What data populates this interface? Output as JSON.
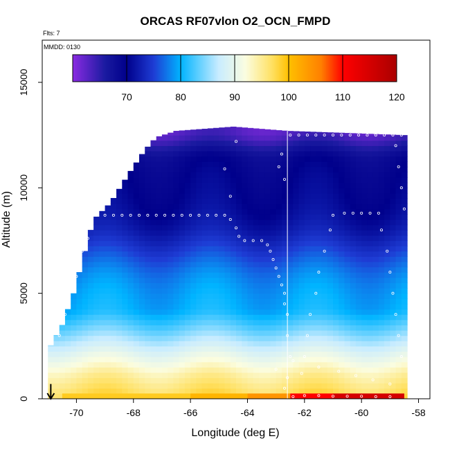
{
  "chart_data": {
    "type": "heatmap",
    "title": "ORCAS RF07vlon O2_OCN_FMPD",
    "note_flts": "Flts: 7",
    "note_mmdd": "MMDD: 0130",
    "xlabel": "Longitude (deg E)",
    "ylabel": "Altitude (m)",
    "xlim": [
      -71.2,
      -57.6
    ],
    "ylim": [
      0,
      17000
    ],
    "x_ticks": [
      -70,
      -68,
      -66,
      -64,
      -62,
      -60,
      -58
    ],
    "x_tick_labels": [
      "-70",
      "-68",
      "-66",
      "-64",
      "-62",
      "-60",
      "-58"
    ],
    "y_ticks": [
      0,
      5000,
      10000,
      15000
    ],
    "y_tick_labels": [
      "0",
      "5000",
      "10000",
      "15000"
    ],
    "colorbar": {
      "range": [
        60,
        120
      ],
      "ticks": [
        70,
        80,
        90,
        100,
        110,
        120
      ],
      "tick_labels": [
        "70",
        "80",
        "90",
        "100",
        "110",
        "120"
      ],
      "colors": [
        "#8a2be2",
        "#1a1aa0",
        "#00008b",
        "#1e3cd4",
        "#00b4ff",
        "#e6f6ff",
        "#fffff0",
        "#ffd21e",
        "#ffa000",
        "#ff0000",
        "#b40000"
      ]
    },
    "colorscale_stops": [
      {
        "value": 60,
        "color": "#8a2be2"
      },
      {
        "value": 66,
        "color": "#1a1aa0"
      },
      {
        "value": 70,
        "color": "#00008b"
      },
      {
        "value": 75,
        "color": "#1e3cd4"
      },
      {
        "value": 80,
        "color": "#00b4ff"
      },
      {
        "value": 87,
        "color": "#c8ecff"
      },
      {
        "value": 92,
        "color": "#fbfde0"
      },
      {
        "value": 97,
        "color": "#ffe060"
      },
      {
        "value": 100,
        "color": "#ffc000"
      },
      {
        "value": 106,
        "color": "#ff8000"
      },
      {
        "value": 110,
        "color": "#ff0000"
      },
      {
        "value": 120,
        "color": "#aa0000"
      }
    ],
    "grid": false,
    "arrow_at": {
      "x": -70.9,
      "y_from": 700,
      "y_to": 0
    },
    "flight_track_line_x": -62.6,
    "field": {
      "top_boundary": [
        [
          -71.0,
          2300
        ],
        [
          -70.5,
          3500
        ],
        [
          -70.1,
          5000
        ],
        [
          -69.8,
          6500
        ],
        [
          -69.4,
          8500
        ],
        [
          -68.8,
          9300
        ],
        [
          -68.2,
          10600
        ],
        [
          -67.6,
          11800
        ],
        [
          -67.2,
          12400
        ],
        [
          -66.5,
          12700
        ],
        [
          -65.5,
          12800
        ],
        [
          -64.5,
          12900
        ],
        [
          -62.6,
          12700
        ],
        [
          -60.5,
          12600
        ],
        [
          -58.5,
          12500
        ]
      ],
      "right_boundary_x": [
        -58.5,
        -58.3
      ],
      "value_profile": [
        {
          "altitude": 0,
          "value": 97
        },
        {
          "altitude": 1200,
          "value": 94
        },
        {
          "altitude": 2200,
          "value": 90
        },
        {
          "altitude": 3000,
          "value": 86
        },
        {
          "altitude": 4200,
          "value": 80
        },
        {
          "altitude": 6000,
          "value": 77
        },
        {
          "altitude": 8000,
          "value": 73
        },
        {
          "altitude": 10000,
          "value": 70
        },
        {
          "altitude": 11500,
          "value": 68
        },
        {
          "altitude": 12500,
          "value": 63
        }
      ],
      "surface_strip": [
        {
          "x_from": -70.5,
          "x_to": -66.0,
          "value": 99
        },
        {
          "x_from": -66.0,
          "x_to": -64.0,
          "value": 101
        },
        {
          "x_from": -64.0,
          "x_to": -62.5,
          "value": 104
        },
        {
          "x_from": -62.5,
          "x_to": -61.0,
          "value": 110
        },
        {
          "x_from": -61.0,
          "x_to": -58.5,
          "value": 115
        }
      ]
    },
    "flight_points": [
      [
        -70.6,
        3000
      ],
      [
        -70.4,
        4000
      ],
      [
        -70.3,
        4600
      ],
      [
        -70.1,
        5200
      ],
      [
        -70.0,
        5800
      ],
      [
        -69.9,
        6400
      ],
      [
        -69.8,
        7000
      ],
      [
        -69.6,
        7600
      ],
      [
        -69.5,
        8200
      ],
      [
        -69.3,
        8700
      ],
      [
        -69.0,
        8700
      ],
      [
        -68.7,
        8700
      ],
      [
        -68.4,
        8700
      ],
      [
        -68.1,
        8700
      ],
      [
        -67.8,
        8700
      ],
      [
        -67.5,
        8700
      ],
      [
        -67.2,
        8700
      ],
      [
        -66.9,
        8700
      ],
      [
        -66.6,
        8700
      ],
      [
        -66.3,
        8700
      ],
      [
        -66.0,
        8700
      ],
      [
        -65.7,
        8700
      ],
      [
        -65.4,
        8700
      ],
      [
        -65.1,
        8700
      ],
      [
        -64.8,
        8700
      ],
      [
        -64.6,
        8500
      ],
      [
        -64.4,
        8100
      ],
      [
        -64.3,
        7700
      ],
      [
        -64.1,
        7500
      ],
      [
        -63.8,
        7500
      ],
      [
        -63.5,
        7500
      ],
      [
        -63.3,
        7300
      ],
      [
        -63.2,
        7000
      ],
      [
        -63.1,
        6600
      ],
      [
        -63.0,
        6200
      ],
      [
        -62.9,
        5800
      ],
      [
        -62.8,
        5400
      ],
      [
        -62.7,
        5000
      ],
      [
        -62.7,
        4500
      ],
      [
        -62.6,
        4000
      ],
      [
        -64.6,
        9600
      ],
      [
        -64.8,
        10900
      ],
      [
        -64.4,
        12200
      ],
      [
        -62.8,
        11600
      ],
      [
        -62.9,
        11000
      ],
      [
        -62.7,
        10400
      ],
      [
        -62.5,
        12500
      ],
      [
        -62.2,
        12500
      ],
      [
        -61.9,
        12500
      ],
      [
        -61.6,
        12500
      ],
      [
        -61.3,
        12500
      ],
      [
        -61.0,
        12500
      ],
      [
        -60.7,
        12500
      ],
      [
        -60.4,
        12500
      ],
      [
        -60.1,
        12500
      ],
      [
        -59.8,
        12500
      ],
      [
        -59.5,
        12500
      ],
      [
        -59.2,
        12500
      ],
      [
        -58.9,
        12500
      ],
      [
        -58.6,
        12500
      ],
      [
        -61.0,
        8700
      ],
      [
        -60.6,
        8800
      ],
      [
        -60.3,
        8800
      ],
      [
        -60.0,
        8800
      ],
      [
        -59.7,
        8800
      ],
      [
        -59.4,
        8800
      ],
      [
        -61.1,
        8000
      ],
      [
        -61.3,
        7000
      ],
      [
        -61.5,
        6000
      ],
      [
        -61.6,
        5000
      ],
      [
        -61.8,
        4000
      ],
      [
        -61.9,
        3000
      ],
      [
        -62.0,
        2000
      ],
      [
        -62.1,
        1200
      ],
      [
        -59.3,
        8000
      ],
      [
        -59.1,
        7000
      ],
      [
        -59.0,
        6000
      ],
      [
        -58.9,
        5000
      ],
      [
        -58.8,
        4000
      ],
      [
        -58.7,
        3000
      ],
      [
        -58.6,
        2000
      ],
      [
        -58.8,
        12000
      ],
      [
        -58.7,
        11000
      ],
      [
        -58.6,
        10000
      ],
      [
        -58.5,
        9000
      ],
      [
        -62.6,
        3000
      ],
      [
        -62.5,
        2000
      ],
      [
        -62.6,
        1000
      ],
      [
        -62.7,
        500
      ],
      [
        -62.4,
        100
      ],
      [
        -62.0,
        150
      ],
      [
        -61.5,
        150
      ],
      [
        -61.0,
        120
      ],
      [
        -60.5,
        120
      ],
      [
        -60.0,
        120
      ],
      [
        -59.5,
        100
      ],
      [
        -59.0,
        100
      ],
      [
        -63.0,
        1400
      ],
      [
        -62.4,
        1800
      ],
      [
        -61.5,
        1500
      ],
      [
        -60.8,
        1300
      ],
      [
        -60.2,
        1100
      ],
      [
        -59.6,
        900
      ],
      [
        -59.0,
        700
      ]
    ]
  }
}
